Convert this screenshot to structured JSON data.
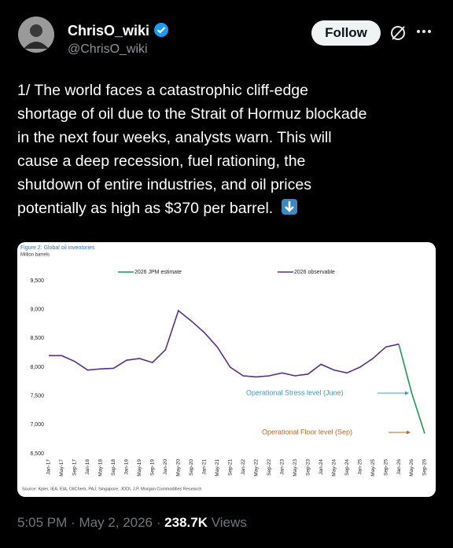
{
  "header": {
    "name": "ChrisO_wiki",
    "handle": "@ChrisO_wiki",
    "follow": "Follow"
  },
  "tweet": {
    "lines": [
      "1/ The world faces a catastrophic cliff-edge",
      "shortage of oil due to the Strait of Hormuz blockade",
      "in the next four weeks, analysts warn. This will",
      "cause a deep recession, fuel rationing, the",
      "shutdown of entire industries, and oil prices",
      "potentially as high as $370 per barrel."
    ]
  },
  "chart_data": {
    "type": "line",
    "title": "Figure 2: Global oil inventories",
    "subtitle": "Million barrels",
    "source": "Source: Kpler, IEA, EIA, OilChem, PAJ, Singapore, JODI, J.P. Morgan Commodities Research",
    "categories": [
      "Jan-17",
      "May-17",
      "Sep-17",
      "Jan-18",
      "May-18",
      "Sep-18",
      "Jan-19",
      "May-19",
      "Sep-19",
      "Jan-20",
      "May-20",
      "Sep-20",
      "Jan-21",
      "May-21",
      "Sep-21",
      "Jan-22",
      "May-22",
      "Sep-22",
      "Jan-23",
      "May-23",
      "Sep-23",
      "Jan-24",
      "May-24",
      "Sep-24",
      "Jan-25",
      "May-25",
      "Sep-25",
      "Jan-26",
      "May-26",
      "Sep-26"
    ],
    "series": [
      {
        "name": "2026 JPM estimate",
        "color": "#1e9b4b",
        "values": [
          null,
          null,
          null,
          null,
          null,
          null,
          null,
          null,
          null,
          null,
          null,
          null,
          null,
          null,
          null,
          null,
          null,
          null,
          null,
          null,
          null,
          null,
          null,
          null,
          null,
          null,
          null,
          8400,
          7550,
          6850
        ]
      },
      {
        "name": "2026 observable",
        "color": "#5b2d8c",
        "values": [
          8200,
          8200,
          8100,
          7950,
          7970,
          7980,
          8120,
          8150,
          8080,
          8300,
          8980,
          8800,
          8600,
          8350,
          8000,
          7850,
          7830,
          7850,
          7900,
          7850,
          7880,
          8050,
          7950,
          7900,
          8000,
          8150,
          8350,
          8400,
          null,
          null
        ]
      }
    ],
    "ylim": [
      6500,
      9500
    ],
    "yticks": [
      {
        "value": 6500,
        "label": "6,500"
      },
      {
        "value": 7000,
        "label": "7,000"
      },
      {
        "value": 7500,
        "label": "7,500"
      },
      {
        "value": 8000,
        "label": "8,000"
      },
      {
        "value": 8500,
        "label": "8,500"
      },
      {
        "value": 9000,
        "label": "9,000"
      },
      {
        "value": 9500,
        "label": "9,500"
      }
    ],
    "grid": false,
    "annotations": [
      {
        "text": "Operational Stress level (June)",
        "color": "#3a9cc4"
      },
      {
        "text": "Operational Floor level (Sep)",
        "color": "#b8692a"
      }
    ]
  },
  "footer": {
    "time": "5:05 PM",
    "separator": "·",
    "date": "May 2, 2026",
    "views": "238.7K",
    "views_label": "Views"
  }
}
